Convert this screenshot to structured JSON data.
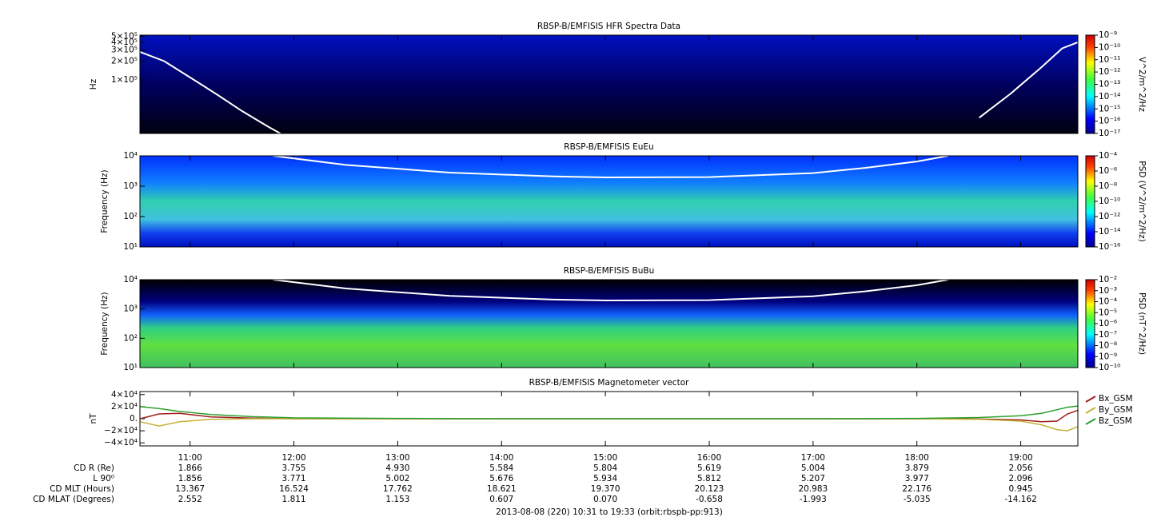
{
  "chart_data": [
    {
      "type": "spectrogram",
      "title": "RBSP-B/EMFISIS  HFR Spectra Data",
      "ylabel": "Hz",
      "ylog": true,
      "xlim": [
        10.517,
        19.55
      ],
      "ylim": [
        14000,
        520000
      ],
      "yticks": [
        {
          "value": 100000,
          "label": "1×10⁵"
        },
        {
          "value": 200000,
          "label": "2×10⁵"
        },
        {
          "value": 300000,
          "label": "3×10⁵"
        },
        {
          "value": 400000,
          "label": "4×10⁵"
        },
        {
          "value": 500000,
          "label": "5×10⁵"
        }
      ],
      "zlabel": "V^2/m^2/Hz",
      "zlog": true,
      "zlim": [
        1e-17,
        1e-09
      ],
      "zticks": [
        {
          "value": 1e-09,
          "label": "10⁻⁹"
        },
        {
          "value": 1e-10,
          "label": "10⁻¹⁰"
        },
        {
          "value": 1e-11,
          "label": "10⁻¹¹"
        },
        {
          "value": 1e-12,
          "label": "10⁻¹²"
        },
        {
          "value": 1e-13,
          "label": "10⁻¹³"
        },
        {
          "value": 1e-14,
          "label": "10⁻¹⁴"
        },
        {
          "value": 1e-15,
          "label": "10⁻¹⁵"
        },
        {
          "value": 1e-16,
          "label": "10⁻¹⁶"
        },
        {
          "value": 1e-17,
          "label": "10⁻¹⁷"
        }
      ],
      "lines": [
        {
          "color": "#ffffff",
          "x": [
            10.52,
            10.75,
            11.0,
            11.25,
            11.5,
            11.75,
            11.87,
            18.3,
            18.6,
            18.9,
            19.2,
            19.4,
            19.55
          ],
          "values": [
            280000,
            200000,
            110000,
            60000,
            32000,
            18000,
            14000,
            null,
            25000,
            60000,
            160000,
            320000,
            400000
          ]
        }
      ]
    },
    {
      "type": "spectrogram",
      "title": "RBSP-B/EMFISIS  EuEu",
      "ylabel": "Frequency (Hz)",
      "ylog": true,
      "xlim": [
        10.517,
        19.55
      ],
      "ylim": [
        10,
        10000
      ],
      "yticks": [
        {
          "value": 10,
          "label": "10¹"
        },
        {
          "value": 100,
          "label": "10²"
        },
        {
          "value": 1000,
          "label": "10³"
        },
        {
          "value": 10000,
          "label": "10⁴"
        }
      ],
      "zlabel": "PSD (V^2/m^2/Hz)",
      "zlog": true,
      "zlim": [
        1e-16,
        0.0001
      ],
      "zticks": [
        {
          "value": 0.0001,
          "label": "10⁻⁴"
        },
        {
          "value": 1e-06,
          "label": "10⁻⁶"
        },
        {
          "value": 1e-08,
          "label": "10⁻⁸"
        },
        {
          "value": 1e-10,
          "label": "10⁻¹⁰"
        },
        {
          "value": 1e-12,
          "label": "10⁻¹²"
        },
        {
          "value": 1e-14,
          "label": "10⁻¹⁴"
        },
        {
          "value": 1e-16,
          "label": "10⁻¹⁶"
        }
      ],
      "lines": [
        {
          "color": "#ffffff",
          "x": [
            11.8,
            12.5,
            13.5,
            14.5,
            15.0,
            16.0,
            17.0,
            17.5,
            18.0,
            18.3
          ],
          "values": [
            10000,
            5000,
            2800,
            2100,
            1950,
            2000,
            2700,
            4000,
            6500,
            10000
          ]
        }
      ]
    },
    {
      "type": "spectrogram",
      "title": "RBSP-B/EMFISIS  BuBu",
      "ylabel": "Frequency (Hz)",
      "ylog": true,
      "xlim": [
        10.517,
        19.55
      ],
      "ylim": [
        10,
        10000
      ],
      "yticks": [
        {
          "value": 10,
          "label": "10¹"
        },
        {
          "value": 100,
          "label": "10²"
        },
        {
          "value": 1000,
          "label": "10³"
        },
        {
          "value": 10000,
          "label": "10⁴"
        }
      ],
      "zlabel": "PSD (nT^2/Hz)",
      "zlog": true,
      "zlim": [
        1e-10,
        0.01
      ],
      "zticks": [
        {
          "value": 0.01,
          "label": "10⁻²"
        },
        {
          "value": 0.001,
          "label": "10⁻³"
        },
        {
          "value": 0.0001,
          "label": "10⁻⁴"
        },
        {
          "value": 1e-05,
          "label": "10⁻⁵"
        },
        {
          "value": 1e-06,
          "label": "10⁻⁶"
        },
        {
          "value": 1e-07,
          "label": "10⁻⁷"
        },
        {
          "value": 1e-08,
          "label": "10⁻⁸"
        },
        {
          "value": 1e-09,
          "label": "10⁻⁹"
        },
        {
          "value": 1e-10,
          "label": "10⁻¹⁰"
        }
      ],
      "lines": [
        {
          "color": "#ffffff",
          "x": [
            11.8,
            12.5,
            13.5,
            14.5,
            15.0,
            16.0,
            17.0,
            17.5,
            18.0,
            18.3
          ],
          "values": [
            10000,
            5000,
            2800,
            2100,
            1950,
            2000,
            2700,
            4000,
            6500,
            10000
          ]
        }
      ]
    },
    {
      "type": "line",
      "title": "RBSP-B/EMFISIS  Magnetometer vector",
      "ylabel": "nT",
      "ylog": false,
      "xlim": [
        10.517,
        19.55
      ],
      "ylim": [
        -45000,
        45000
      ],
      "yticks": [
        {
          "value": 40000,
          "label": "4×10⁴"
        },
        {
          "value": 20000,
          "label": "2×10⁴"
        },
        {
          "value": 0,
          "label": "0."
        },
        {
          "value": -20000,
          "label": "−2×10⁴"
        },
        {
          "value": -40000,
          "label": "−4×10⁴"
        }
      ],
      "xticks": [
        {
          "value": 11,
          "label": "11:00"
        },
        {
          "value": 12,
          "label": "12:00"
        },
        {
          "value": 13,
          "label": "13:00"
        },
        {
          "value": 14,
          "label": "14:00"
        },
        {
          "value": 15,
          "label": "15:00"
        },
        {
          "value": 16,
          "label": "16:00"
        },
        {
          "value": 17,
          "label": "17:00"
        },
        {
          "value": 18,
          "label": "18:00"
        },
        {
          "value": 19,
          "label": "19:00"
        }
      ],
      "x": [
        10.52,
        10.7,
        10.9,
        11.2,
        11.6,
        12,
        13,
        14,
        15,
        16,
        17,
        18,
        18.6,
        19,
        19.2,
        19.35,
        19.45,
        19.55
      ],
      "series": [
        {
          "name": "Bx_GSM",
          "color": "#a01c1c",
          "values": [
            0,
            8000,
            9000,
            3000,
            1000,
            0,
            0,
            0,
            0,
            0,
            0,
            0,
            -500,
            -2000,
            -5000,
            -4000,
            8000,
            14000
          ]
        },
        {
          "name": "By_GSM",
          "color": "#c4b238",
          "values": [
            -5000,
            -12000,
            -5000,
            -1000,
            0,
            0,
            0,
            0,
            0,
            0,
            0,
            0,
            -1000,
            -4000,
            -10000,
            -18000,
            -20000,
            -13000
          ]
        },
        {
          "name": "Bz_GSM",
          "color": "#2ca02c",
          "values": [
            20000,
            17000,
            12000,
            7000,
            3500,
            1500,
            500,
            0,
            0,
            0,
            0,
            500,
            2000,
            5000,
            9000,
            15000,
            19000,
            21000
          ]
        }
      ]
    }
  ],
  "ephemeris": {
    "labels": [
      "CD R (Re)",
      "L 90⁰",
      "CD MLT (Hours)",
      "CD MLAT (Degrees)"
    ],
    "rows": [
      [
        "1.866",
        "3.755",
        "4.930",
        "5.584",
        "5.804",
        "5.619",
        "5.004",
        "3.879",
        "2.056"
      ],
      [
        "1.856",
        "3.771",
        "5.002",
        "5.676",
        "5.934",
        "5.812",
        "5.207",
        "3.977",
        "2.096"
      ],
      [
        "13.367",
        "16.524",
        "17.762",
        "18.621",
        "19.370",
        "20.123",
        "20.983",
        "22.176",
        "0.945"
      ],
      [
        "2.552",
        "1.811",
        "1.153",
        "0.607",
        "0.070",
        "-0.658",
        "-1.993",
        "-5.035",
        "-14.162"
      ]
    ]
  },
  "footer": "2013-08-08 (220) 10:31 to 19:33 (orbit:rbspb-pp:913)"
}
